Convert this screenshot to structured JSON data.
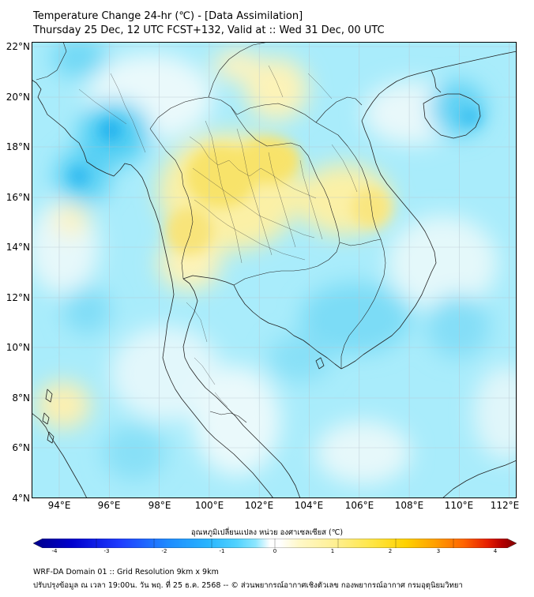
{
  "title": {
    "line1": "Temperature Change 24-hr (℃) - [Data Assimilation]",
    "line2": "Thursday 25 Dec, 12 UTC FCST+132, Valid at :: Wed 31 Dec, 00 UTC"
  },
  "map": {
    "lat_labels": [
      "22°N",
      "20°N",
      "18°N",
      "16°N",
      "14°N",
      "12°N",
      "10°N",
      "8°N",
      "6°N",
      "4°N"
    ],
    "lon_labels": [
      "94°E",
      "96°E",
      "98°E",
      "100°E",
      "102°E",
      "104°E",
      "106°E",
      "108°E",
      "110°E",
      "112°E"
    ],
    "lat_range": [
      4,
      22.3
    ],
    "lon_range": [
      93.1,
      112.5
    ]
  },
  "colorbar": {
    "title": "อุณหภูมิเปลี่ยนแปลง หน่วย องศาเซลเซียส (℃)",
    "ticks": [
      "-4",
      "-3",
      "-2",
      "-1",
      "0",
      "1",
      "2",
      "3",
      "4"
    ],
    "range": [
      -4,
      4
    ],
    "colors": [
      "#00008b",
      "#0000cd",
      "#1e3cff",
      "#1e8cff",
      "#28b4ff",
      "#50d2ff",
      "#8ce6ff",
      "#c8f5ff",
      "#ffffff",
      "#fff8c8",
      "#fff096",
      "#ffe646",
      "#ffd200",
      "#ffa000",
      "#ff6400",
      "#e61e00",
      "#b40000",
      "#800000"
    ]
  },
  "footer": {
    "line1": "WRF-DA Domain 01 :: Grid Resolution 9km x 9km",
    "line2": "ปรับปรุงข้อมูล ณ เวลา 19:00น. วัน พฤ. ที่ 25 ธ.ค. 2568 -- © ส่วนพยากรณ์อากาศเชิงตัวเลข กองพยากรณ์อากาศ กรมอุตุนิยมวิทยา"
  }
}
